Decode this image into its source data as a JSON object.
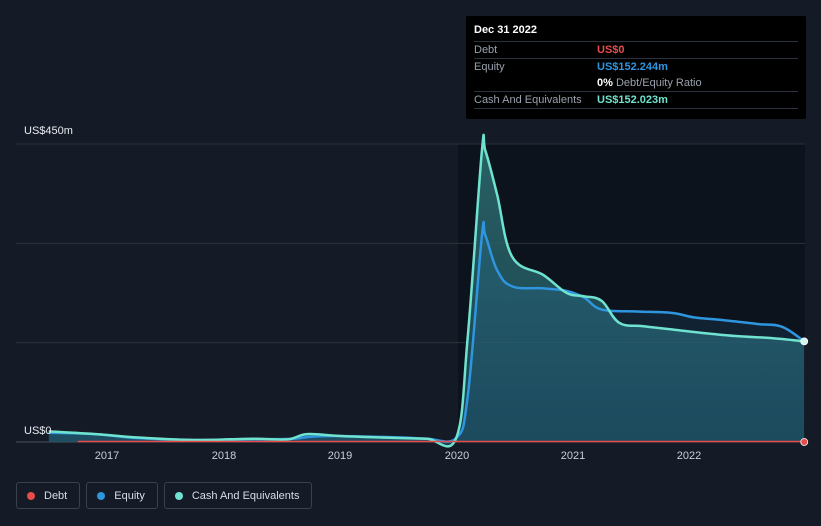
{
  "tooltip": {
    "date": "Dec 31 2022",
    "rows": [
      {
        "key": "Debt",
        "value": "US$0",
        "color": "#e64c4c"
      },
      {
        "key": "Equity",
        "value": "US$152.244m",
        "color": "#2e95df"
      },
      {
        "key": "",
        "value": "0%",
        "sub": "Debt/Equity Ratio",
        "color": "#ffffff"
      },
      {
        "key": "Cash And Equivalents",
        "value": "US$152.023m",
        "color": "#6fe3cf"
      }
    ]
  },
  "legend": [
    {
      "label": "Debt",
      "color": "#e64c4c"
    },
    {
      "label": "Equity",
      "color": "#2e95df"
    },
    {
      "label": "Cash And Equivalents",
      "color": "#6fe3cf"
    }
  ],
  "chart_data": {
    "type": "area",
    "ylabel_top": "US$450m",
    "ylabel_bottom": "US$0",
    "ylim": [
      0,
      450
    ],
    "xlim": [
      2016.5,
      2022.99
    ],
    "x_ticks": [
      "2017",
      "2018",
      "2019",
      "2020",
      "2021",
      "2022"
    ],
    "x_tick_values": [
      2017,
      2018,
      2019,
      2020,
      2021,
      2022
    ],
    "gridlines": [
      0,
      150,
      300,
      450
    ],
    "series": [
      {
        "name": "Debt",
        "color": "#e64c4c",
        "points": [
          [
            2016.75,
            0
          ],
          [
            2022.99,
            0
          ]
        ]
      },
      {
        "name": "Equity",
        "color": "#2e95df",
        "points": [
          [
            2016.5,
            14
          ],
          [
            2016.9,
            12
          ],
          [
            2017.25,
            6
          ],
          [
            2017.75,
            3
          ],
          [
            2018.25,
            4
          ],
          [
            2018.6,
            5
          ],
          [
            2018.75,
            8
          ],
          [
            2019.0,
            9
          ],
          [
            2019.5,
            7
          ],
          [
            2019.75,
            5
          ],
          [
            2020.0,
            6
          ],
          [
            2020.1,
            70
          ],
          [
            2020.22,
            310
          ],
          [
            2020.25,
            312
          ],
          [
            2020.35,
            260
          ],
          [
            2020.48,
            235
          ],
          [
            2020.75,
            232
          ],
          [
            2020.95,
            228
          ],
          [
            2021.1,
            218
          ],
          [
            2021.25,
            200
          ],
          [
            2021.55,
            197
          ],
          [
            2021.85,
            195
          ],
          [
            2022.05,
            188
          ],
          [
            2022.3,
            184
          ],
          [
            2022.6,
            178
          ],
          [
            2022.8,
            174
          ],
          [
            2022.99,
            152
          ]
        ]
      },
      {
        "name": "Cash And Equivalents",
        "color": "#6fe3cf",
        "points": [
          [
            2016.5,
            16
          ],
          [
            2016.9,
            12
          ],
          [
            2017.25,
            7
          ],
          [
            2017.75,
            3
          ],
          [
            2018.25,
            5
          ],
          [
            2018.55,
            4
          ],
          [
            2018.72,
            12
          ],
          [
            2019.0,
            9
          ],
          [
            2019.5,
            6
          ],
          [
            2019.75,
            5
          ],
          [
            2020.0,
            6
          ],
          [
            2020.1,
            160
          ],
          [
            2020.22,
            438
          ],
          [
            2020.25,
            440
          ],
          [
            2020.35,
            375
          ],
          [
            2020.48,
            280
          ],
          [
            2020.75,
            252
          ],
          [
            2020.95,
            225
          ],
          [
            2021.1,
            220
          ],
          [
            2021.25,
            213
          ],
          [
            2021.4,
            180
          ],
          [
            2021.6,
            175
          ],
          [
            2021.85,
            170
          ],
          [
            2022.1,
            165
          ],
          [
            2022.4,
            160
          ],
          [
            2022.7,
            157
          ],
          [
            2022.99,
            152
          ]
        ]
      }
    ]
  }
}
